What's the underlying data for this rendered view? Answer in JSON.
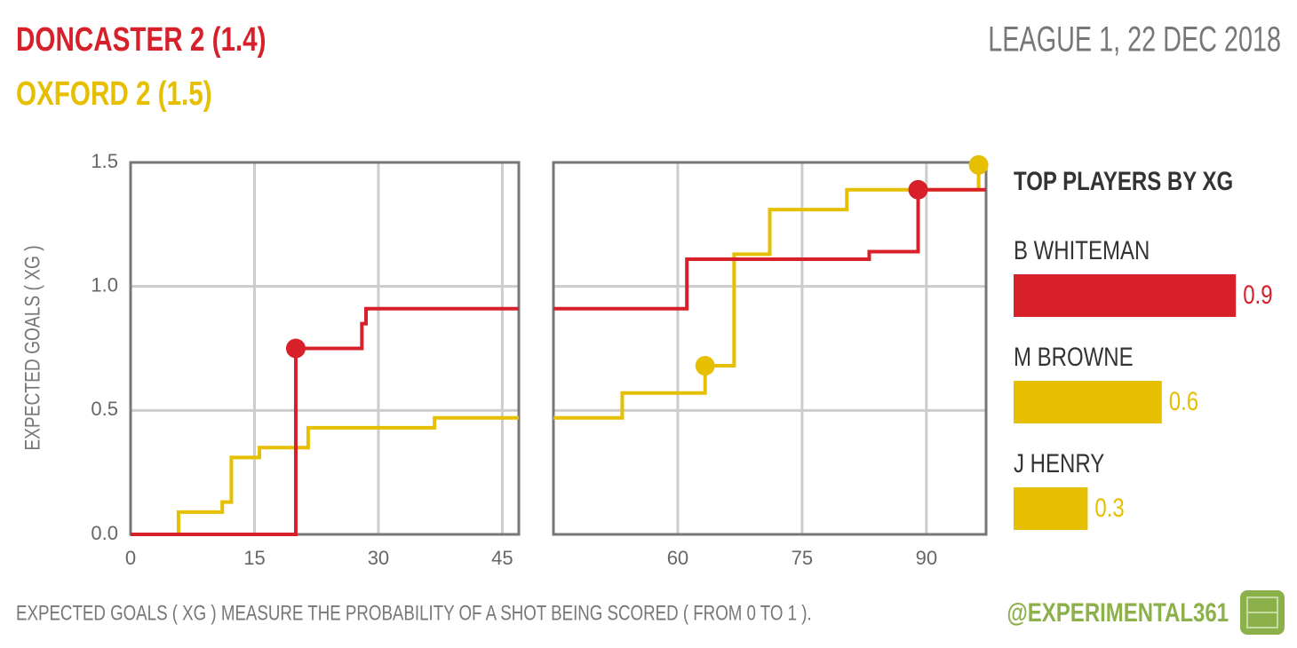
{
  "header": {
    "home": "DONCASTER 2 (1.4)",
    "away": "OXFORD 2 (1.5)",
    "competition": "LEAGUE 1, 22 DEC 2018"
  },
  "footer": {
    "note": "EXPECTED GOALS ( XG ) MEASURE THE PROBABILITY OF A SHOT BEING SCORED ( FROM 0 TO 1 ).",
    "credit": "@EXPERIMENTAL361"
  },
  "chart_data": [
    {
      "type": "step",
      "y_label": "EXPECTED GOALS ( XG )",
      "xlim": [
        0,
        47
      ],
      "xticks": [
        0,
        15,
        30,
        45
      ],
      "ylim": [
        0,
        1.5
      ],
      "yticks": [
        {
          "value": 0,
          "label": "0.0"
        },
        0.5,
        {
          "value": 1,
          "label": "1.0"
        },
        1.5
      ],
      "ytick_labels": true,
      "grid": true,
      "series": [
        {
          "color": "#e5bf00",
          "x": [
            0,
            5.8,
            11.1,
            12.2,
            15.6,
            21.5,
            36.8,
            47
          ],
          "values": [
            0,
            0.09,
            0.13,
            0.31,
            0.35,
            0.43,
            0.47,
            0.47
          ]
        },
        {
          "color": "#d7202a",
          "x": [
            0,
            20,
            28,
            28.5,
            47
          ],
          "values": [
            0,
            0.75,
            0.85,
            0.91,
            0.91
          ]
        }
      ],
      "goals": [
        {
          "color": "#d7202a",
          "x": [
            20
          ],
          "values": [
            0.75
          ]
        }
      ]
    },
    {
      "type": "step",
      "xlim": [
        45,
        97.2
      ],
      "xticks": [
        60,
        75,
        90
      ],
      "ylim": [
        0,
        1.5
      ],
      "yticks": [
        0,
        0.5,
        1,
        1.5
      ],
      "ytick_labels": false,
      "grid": true,
      "series": [
        {
          "color": "#e5bf00",
          "x": [
            45,
            53.3,
            63.3,
            66.8,
            71.1,
            80.4,
            96.3,
            97.2
          ],
          "values": [
            0.47,
            0.57,
            0.68,
            1.13,
            1.31,
            1.39,
            1.49,
            1.49
          ]
        },
        {
          "color": "#d7202a",
          "x": [
            45,
            61.1,
            83.1,
            89,
            97.2
          ],
          "values": [
            0.91,
            1.11,
            1.14,
            1.39,
            1.39
          ]
        }
      ],
      "goals": [
        {
          "color": "#e5bf00",
          "x": [
            63.3,
            96.3
          ],
          "values": [
            0.68,
            1.49
          ]
        },
        {
          "color": "#d7202a",
          "x": [
            89
          ],
          "values": [
            1.39
          ]
        }
      ]
    },
    {
      "type": "hbar",
      "title": "TOP PLAYERS BY XG",
      "categories": [
        "B WHITEMAN",
        "M BROWNE",
        "J HENRY"
      ],
      "values": [
        0.9,
        0.6,
        0.3
      ],
      "colors": [
        "#d7202a",
        "#e5bf00",
        "#e5bf00"
      ],
      "xlim": [
        0,
        1
      ]
    }
  ]
}
